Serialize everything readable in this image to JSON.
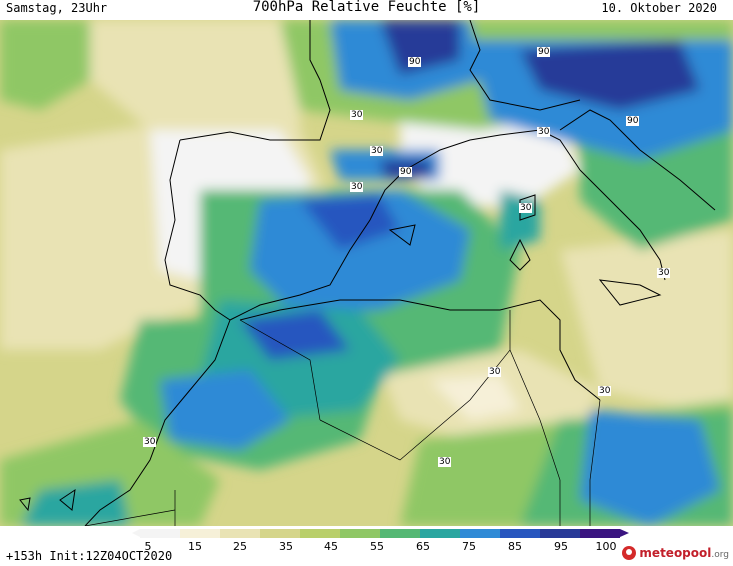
{
  "header": {
    "left": "Samstag, 23Uhr",
    "title": "700hPa Relative Feuchte [%]",
    "right": "10. Oktober 2020"
  },
  "map": {
    "contour_labels": [
      "90",
      "90",
      "90",
      "90",
      "30",
      "30",
      "30",
      "30",
      "30",
      "30",
      "30",
      "30",
      "30",
      "30"
    ]
  },
  "legend": {
    "ticks": [
      "5",
      "15",
      "25",
      "35",
      "45",
      "55",
      "65",
      "75",
      "85",
      "95",
      "100"
    ],
    "colors": [
      "#f4f4f4",
      "#f6f0d8",
      "#e9e3b4",
      "#d5d58a",
      "#b9cf6a",
      "#8fc765",
      "#55b874",
      "#2aa6a0",
      "#2f8ad6",
      "#2756bf",
      "#283a98",
      "#3a1480"
    ]
  },
  "footer": {
    "init": "+153h Init:12Z04OCT2020",
    "brand_name": "meteopool",
    "brand_tld": ".org"
  }
}
